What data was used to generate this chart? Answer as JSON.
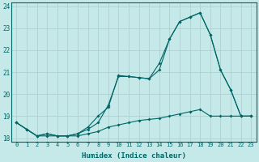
{
  "xlabel": "Humidex (Indice chaleur)",
  "background_color": "#c5e8e8",
  "grid_color": "#aacccc",
  "line_color": "#006666",
  "xlim": [
    -0.5,
    23.5
  ],
  "ylim": [
    17.85,
    24.15
  ],
  "yticks": [
    18,
    19,
    20,
    21,
    22,
    23,
    24
  ],
  "xticks": [
    0,
    1,
    2,
    3,
    4,
    5,
    6,
    7,
    8,
    9,
    10,
    11,
    12,
    13,
    14,
    15,
    16,
    17,
    18,
    19,
    20,
    21,
    22,
    23
  ],
  "line1_x": [
    0,
    1,
    2,
    3,
    4,
    5,
    6,
    7,
    8,
    9,
    10,
    11,
    12,
    13,
    14,
    15,
    16,
    17,
    18,
    19,
    20,
    21,
    22,
    23
  ],
  "line1_y": [
    18.7,
    18.4,
    18.1,
    18.1,
    18.1,
    18.1,
    18.1,
    18.2,
    18.3,
    18.5,
    18.6,
    18.7,
    18.8,
    18.85,
    18.9,
    19.0,
    19.1,
    19.2,
    19.3,
    19.0,
    19.0,
    19.0,
    19.0,
    19.0
  ],
  "line2_x": [
    0,
    1,
    2,
    3,
    4,
    5,
    6,
    7,
    8,
    9,
    10,
    11,
    12,
    13,
    14,
    15,
    16,
    17,
    18,
    19,
    20,
    21,
    22,
    23
  ],
  "line2_y": [
    18.7,
    18.4,
    18.1,
    18.2,
    18.1,
    18.1,
    18.2,
    18.4,
    18.7,
    19.5,
    20.8,
    20.8,
    20.75,
    20.7,
    21.1,
    22.5,
    23.3,
    23.5,
    23.7,
    22.7,
    21.1,
    20.2,
    19.0,
    19.0
  ],
  "line3_x": [
    0,
    1,
    2,
    3,
    4,
    5,
    6,
    7,
    8,
    9,
    10,
    11,
    12,
    13,
    14,
    15,
    16,
    17,
    18,
    19,
    20,
    21,
    22,
    23
  ],
  "line3_y": [
    18.7,
    18.4,
    18.1,
    18.2,
    18.1,
    18.1,
    18.2,
    18.5,
    19.0,
    19.4,
    20.85,
    20.8,
    20.75,
    20.7,
    21.4,
    22.5,
    23.3,
    23.5,
    23.7,
    22.7,
    21.1,
    20.2,
    19.0,
    19.0
  ]
}
